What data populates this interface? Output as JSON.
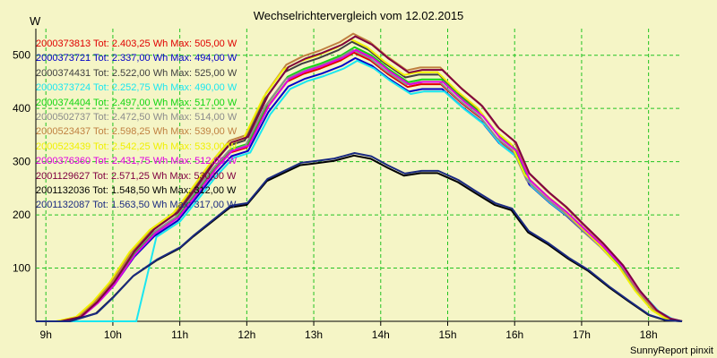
{
  "chart_data": {
    "type": "line",
    "title": "Wechselrichtervergleich vom 12.02.2015",
    "ylabel": "W",
    "footer": "SunnyReport pinxit",
    "ylim": [
      0,
      550
    ],
    "yticks": [
      100,
      200,
      300,
      400,
      500
    ],
    "x_hours": [
      8.85,
      18.5
    ],
    "xticks": [
      "9h",
      "10h",
      "11h",
      "12h",
      "13h",
      "14h",
      "15h",
      "16h",
      "17h",
      "18h"
    ],
    "grid": true,
    "background": "#f5f5c6",
    "series": [
      {
        "name": "2000373813 Tot: 2.403,25 Wh Max: 505,00 W",
        "color": "#e00000"
      },
      {
        "name": "2000373721 Tot: 2.337,00 Wh Max: 494,00 W",
        "color": "#0000c8"
      },
      {
        "name": "2000374431 Tot: 2.522,00 Wh Max: 525,00 W",
        "color": "#404040"
      },
      {
        "name": "2000373724 Tot: 2.252,75 Wh Max: 490,00 W",
        "color": "#1ae6f0"
      },
      {
        "name": "2000374404 Tot: 2.497,00 Wh Max: 517,00 W",
        "color": "#12d612"
      },
      {
        "name": "2000502737 Tot: 2.472,50 Wh Max: 514,00 W",
        "color": "#8c8c8c"
      },
      {
        "name": "2000523437 Tot: 2.598,25 Wh Max: 539,00 W",
        "color": "#c08040"
      },
      {
        "name": "2000523439 Tot: 2.542,25 Wh Max: 533,00 W",
        "color": "#f0f000"
      },
      {
        "name": "2000376360 Tot: 2.431,75 Wh Max: 512,00 W",
        "color": "#e000e0"
      },
      {
        "name": "2001129627 Tot: 2.571,25 Wh Max: 530,00 W",
        "color": "#800040"
      },
      {
        "name": "2001132036 Tot: 1.548,50 Wh Max: 312,00 W",
        "color": "#000000"
      },
      {
        "name": "2001132087 Tot: 1.563,50 Wh Max: 317,00 W",
        "color": "#1a2a80"
      }
    ]
  }
}
